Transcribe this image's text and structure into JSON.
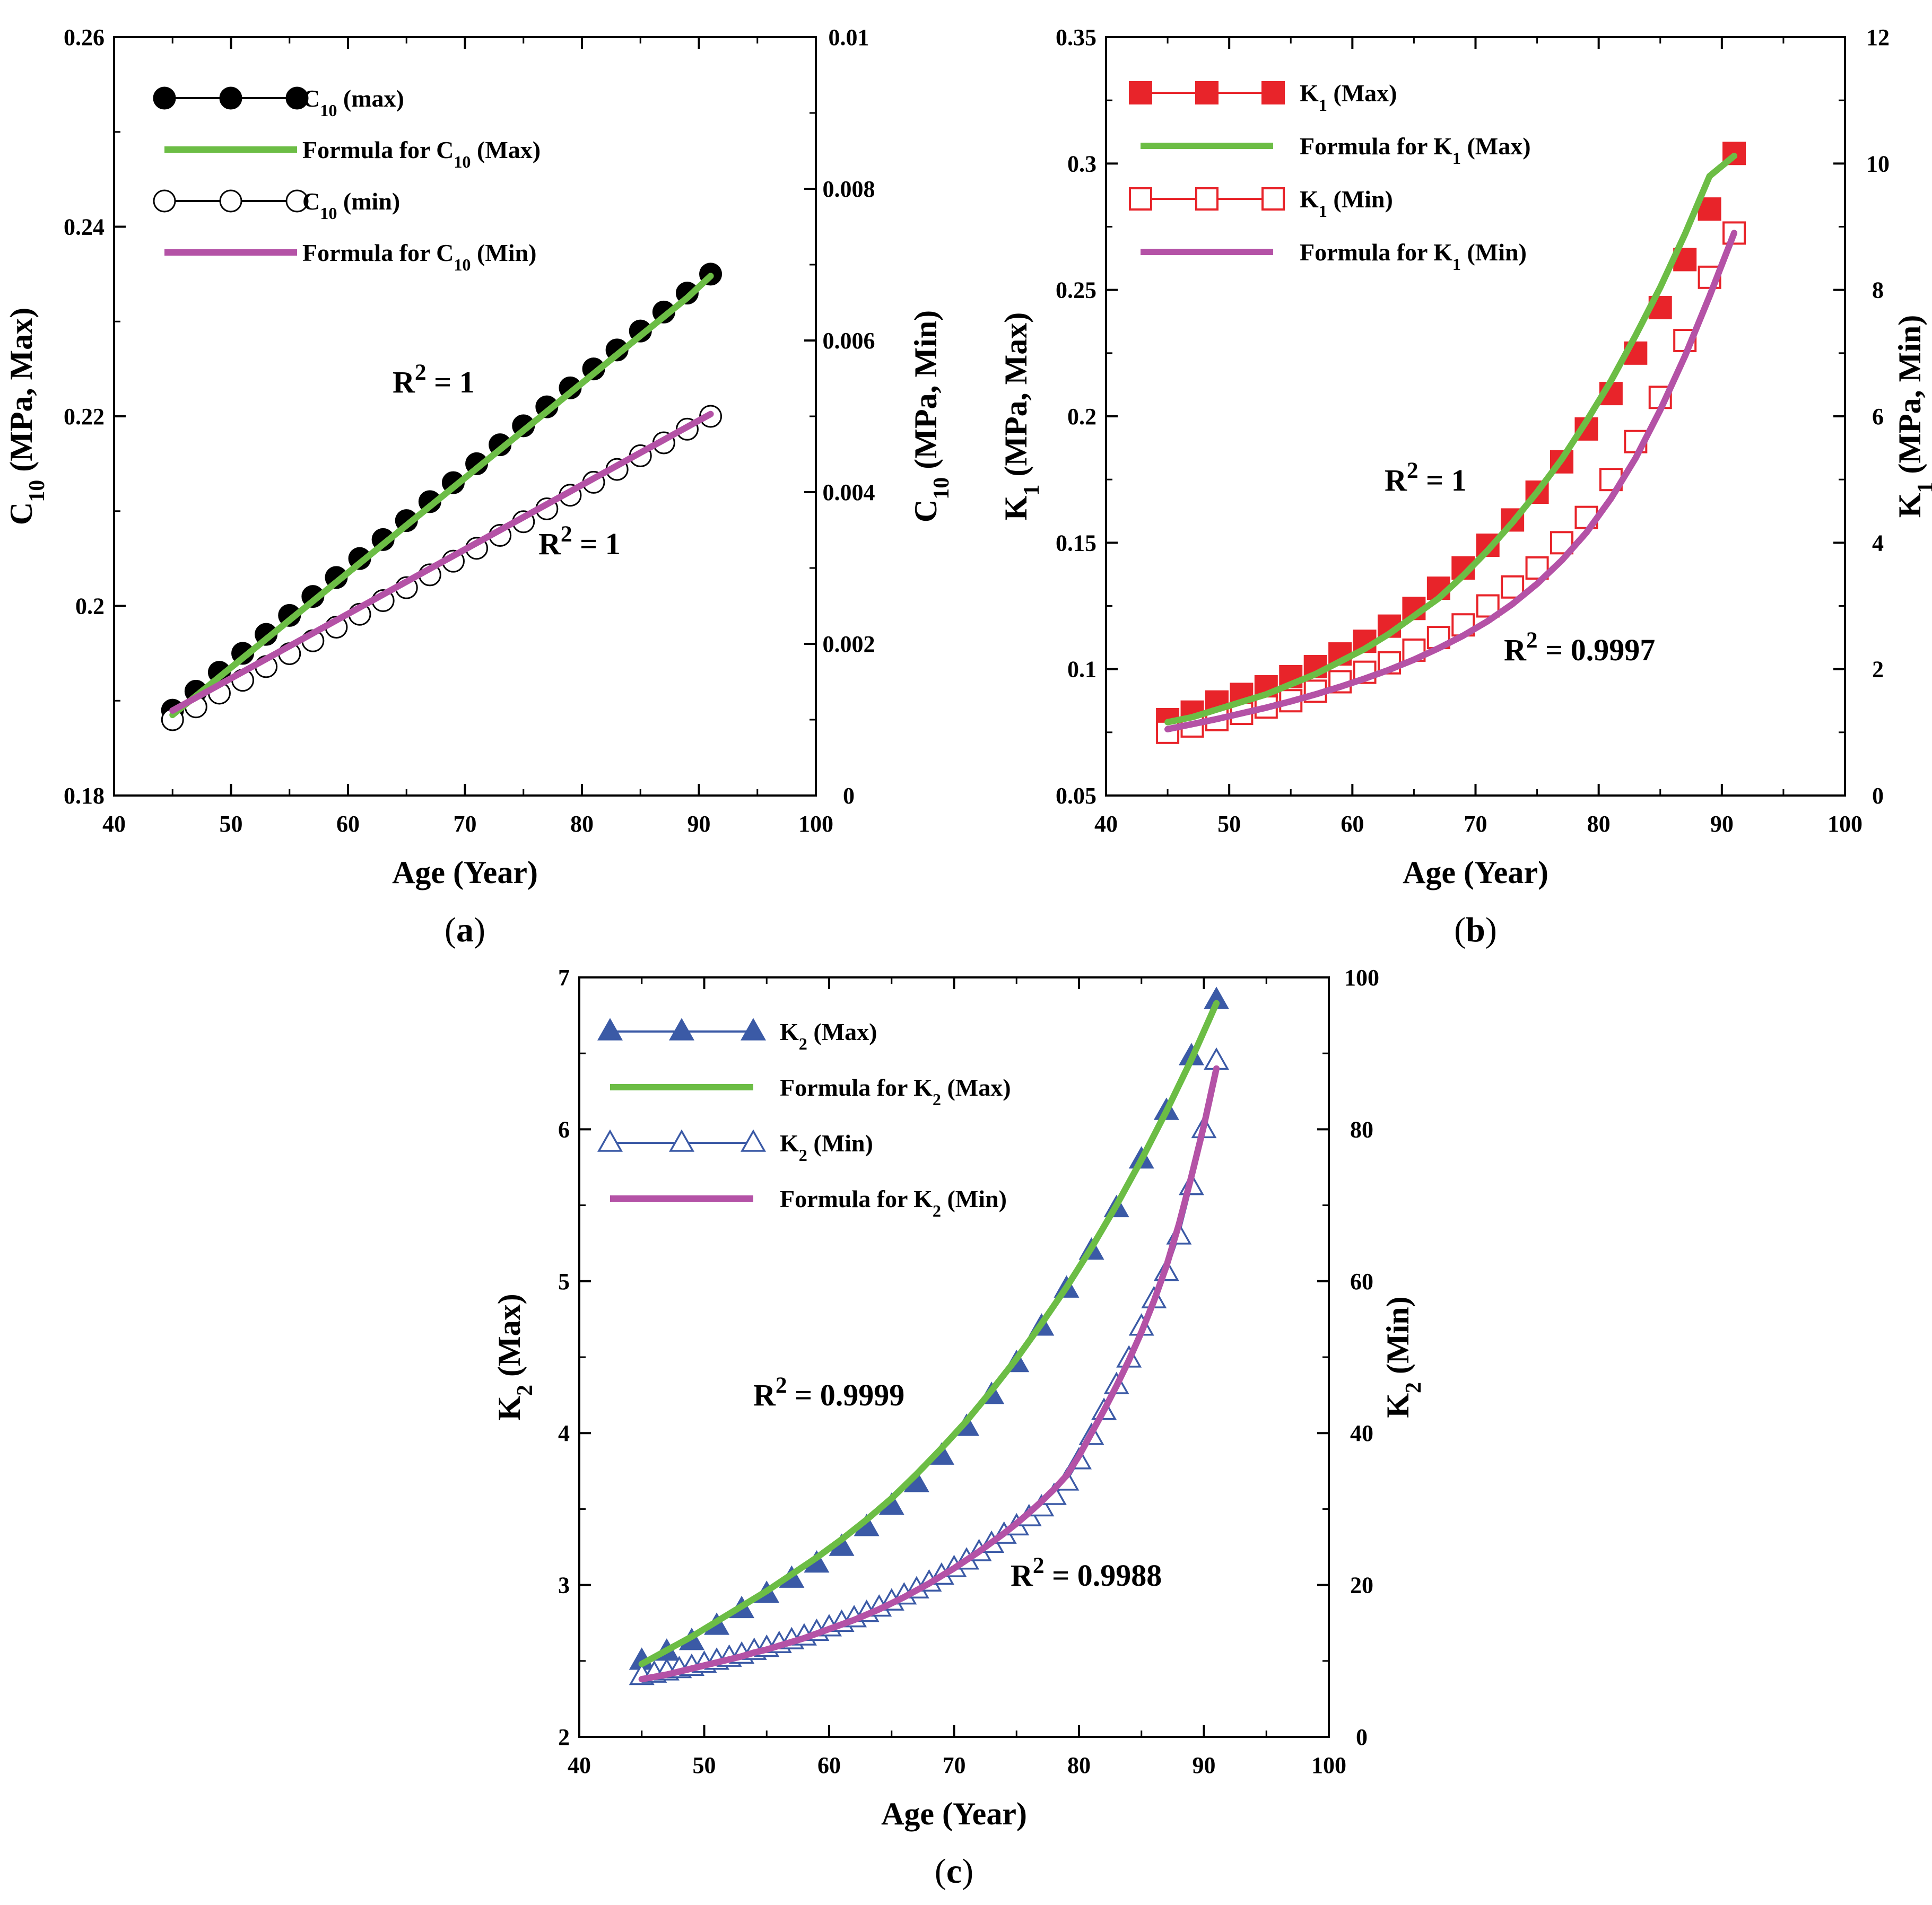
{
  "chart_data": [
    {
      "id": "a",
      "type": "line",
      "panel_label": "(a)",
      "xlabel": "Age (Year)",
      "ylabel_left": "C10 (MPa, Max)",
      "ylabel_right": "C10 (MPa, Min)",
      "xlim": [
        40,
        100
      ],
      "ylim_left": [
        0.18,
        0.26
      ],
      "ylim_right": [
        0,
        0.01
      ],
      "x_ticks": [
        40,
        50,
        60,
        70,
        80,
        90,
        100
      ],
      "x_tick_labels": [
        "40",
        "50",
        "60",
        "70",
        "80",
        "90",
        "100"
      ],
      "y_left_ticks": [
        0.18,
        0.2,
        0.22,
        0.24,
        0.26
      ],
      "y_left_tick_labels": [
        "0.18",
        "0.2",
        "0.22",
        "0.24",
        "0.26"
      ],
      "y_right_ticks": [
        0,
        0.002,
        0.004,
        0.006,
        0.008,
        0.01
      ],
      "y_right_tick_labels": [
        "0",
        "0.002",
        "0.004",
        "0.006",
        "0.008",
        "0.01"
      ],
      "x": [
        45,
        47,
        49,
        51,
        53,
        55,
        57,
        59,
        61,
        63,
        65,
        67,
        69,
        71,
        73,
        75,
        77,
        79,
        81,
        83,
        85,
        87,
        89,
        91
      ],
      "series": [
        {
          "name": "C10 (max)",
          "axis": "left",
          "style": "marker-filled-circle",
          "values": [
            0.189,
            0.191,
            0.193,
            0.195,
            0.197,
            0.199,
            0.201,
            0.203,
            0.205,
            0.207,
            0.209,
            0.211,
            0.213,
            0.215,
            0.217,
            0.219,
            0.221,
            0.223,
            0.225,
            0.227,
            0.229,
            0.231,
            0.233,
            0.235
          ]
        },
        {
          "name": "Formula for C10 (Max)",
          "axis": "left",
          "style": "line-green",
          "values": [
            0.1885,
            0.1905,
            0.1925,
            0.1945,
            0.1965,
            0.1985,
            0.2005,
            0.2025,
            0.2045,
            0.2065,
            0.2085,
            0.2105,
            0.2125,
            0.2145,
            0.2165,
            0.2185,
            0.2205,
            0.2225,
            0.2245,
            0.2265,
            0.2285,
            0.2305,
            0.2325,
            0.2348
          ]
        },
        {
          "name": "C10 (min)",
          "axis": "right",
          "style": "marker-open-circle",
          "values": [
            0.001,
            0.00117,
            0.00135,
            0.00152,
            0.0017,
            0.00187,
            0.00204,
            0.00222,
            0.00239,
            0.00257,
            0.00274,
            0.00291,
            0.00309,
            0.00326,
            0.00343,
            0.00361,
            0.00378,
            0.00396,
            0.00413,
            0.0043,
            0.00448,
            0.00465,
            0.00483,
            0.005
          ]
        },
        {
          "name": "Formula for C10 (Min)",
          "axis": "right",
          "style": "line-magenta",
          "values": [
            0.00112,
            0.00129,
            0.00146,
            0.00163,
            0.0018,
            0.00197,
            0.00214,
            0.00231,
            0.00248,
            0.00265,
            0.00282,
            0.00299,
            0.00316,
            0.00333,
            0.0035,
            0.00367,
            0.00384,
            0.00401,
            0.00418,
            0.00435,
            0.00452,
            0.00469,
            0.00486,
            0.00503
          ]
        }
      ],
      "legend": [
        "C10 (max)",
        "Formula for C10 (Max)",
        "C10 (min)",
        "Formula for C10 (Min)"
      ],
      "legend_position": "top-left",
      "annotations": [
        "R2 = 1",
        "R2 = 1"
      ]
    },
    {
      "id": "b",
      "type": "line",
      "panel_label": "(b)",
      "xlabel": "Age (Year)",
      "ylabel_left": "K1 (MPa, Max)",
      "ylabel_right": "K1 (MPa, Min)",
      "xlim": [
        40,
        100
      ],
      "ylim_left": [
        0.05,
        0.35
      ],
      "ylim_right": [
        0,
        12
      ],
      "x_ticks": [
        40,
        50,
        60,
        70,
        80,
        90,
        100
      ],
      "x_tick_labels": [
        "40",
        "50",
        "60",
        "70",
        "80",
        "90",
        "100"
      ],
      "y_left_ticks": [
        0.05,
        0.1,
        0.15,
        0.2,
        0.25,
        0.3,
        0.35
      ],
      "y_left_tick_labels": [
        "0.05",
        "0.1",
        "0.15",
        "0.2",
        "0.25",
        "0.3",
        "0.35"
      ],
      "y_right_ticks": [
        0,
        2,
        4,
        6,
        8,
        10,
        12
      ],
      "y_right_tick_labels": [
        "0",
        "2",
        "4",
        "6",
        "8",
        "10",
        "12"
      ],
      "x": [
        45,
        47,
        49,
        51,
        53,
        55,
        57,
        59,
        61,
        63,
        65,
        67,
        69,
        71,
        73,
        75,
        77,
        79,
        81,
        83,
        85,
        87,
        89,
        91
      ],
      "series": [
        {
          "name": "K1 (Max)",
          "axis": "left",
          "style": "marker-filled-square",
          "values": [
            0.08,
            0.083,
            0.087,
            0.09,
            0.093,
            0.097,
            0.101,
            0.106,
            0.111,
            0.117,
            0.124,
            0.132,
            0.14,
            0.149,
            0.159,
            0.17,
            0.182,
            0.195,
            0.209,
            0.225,
            0.243,
            0.262,
            0.282,
            0.304
          ]
        },
        {
          "name": "Formula for K1 (Max)",
          "axis": "left",
          "style": "line-green",
          "values": [
            0.079,
            0.081,
            0.084,
            0.087,
            0.09,
            0.094,
            0.098,
            0.103,
            0.108,
            0.114,
            0.121,
            0.128,
            0.137,
            0.147,
            0.158,
            0.17,
            0.183,
            0.198,
            0.214,
            0.232,
            0.251,
            0.272,
            0.295,
            0.303
          ]
        },
        {
          "name": "K1 (Min)",
          "axis": "right",
          "style": "marker-open-square",
          "values": [
            1.0,
            1.1,
            1.2,
            1.3,
            1.4,
            1.5,
            1.65,
            1.8,
            1.95,
            2.1,
            2.3,
            2.5,
            2.7,
            3.0,
            3.3,
            3.6,
            4.0,
            4.4,
            5.0,
            5.6,
            6.3,
            7.2,
            8.2,
            8.9
          ]
        },
        {
          "name": "Formula for K1 (Min)",
          "axis": "right",
          "style": "line-magenta",
          "values": [
            1.05,
            1.13,
            1.21,
            1.3,
            1.39,
            1.49,
            1.6,
            1.72,
            1.85,
            1.99,
            2.15,
            2.33,
            2.53,
            2.76,
            3.03,
            3.35,
            3.72,
            4.16,
            4.7,
            5.34,
            6.1,
            6.95,
            7.9,
            8.9
          ]
        }
      ],
      "legend": [
        "K1 (Max)",
        "Formula for K1 (Max)",
        "K1 (Min)",
        "Formula for K1 (Min)"
      ],
      "legend_position": "top-left",
      "annotations": [
        "R2 = 1",
        "R2 = 0.9997"
      ]
    },
    {
      "id": "c",
      "type": "line",
      "panel_label": "(c)",
      "xlabel": "Age (Year)",
      "ylabel_left": "K2 (Max)",
      "ylabel_right": "K2 (Min)",
      "xlim": [
        40,
        100
      ],
      "ylim_left": [
        2,
        7
      ],
      "ylim_right": [
        0,
        100
      ],
      "x_ticks": [
        40,
        50,
        60,
        70,
        80,
        90,
        100
      ],
      "x_tick_labels": [
        "40",
        "50",
        "60",
        "70",
        "80",
        "90",
        "100"
      ],
      "y_left_ticks": [
        2,
        3,
        4,
        5,
        6,
        7
      ],
      "y_left_tick_labels": [
        "2",
        "3",
        "4",
        "5",
        "6",
        "7"
      ],
      "y_right_ticks": [
        0,
        20,
        40,
        60,
        80,
        100
      ],
      "y_right_tick_labels": [
        "0",
        "20",
        "40",
        "60",
        "80",
        "100"
      ],
      "x_max": [
        45,
        47,
        49,
        51,
        53,
        55,
        57,
        59,
        61,
        63,
        65,
        67,
        69,
        71,
        73,
        75,
        77,
        79,
        81,
        83,
        85,
        87,
        89,
        91
      ],
      "x_min": [
        45,
        46,
        47,
        48,
        49,
        50,
        51,
        52,
        53,
        54,
        55,
        56,
        57,
        58,
        59,
        60,
        61,
        62,
        63,
        64,
        65,
        66,
        67,
        68,
        69,
        70,
        71,
        72,
        73,
        74,
        75,
        76,
        77,
        78,
        79,
        80,
        81,
        82,
        83,
        84,
        85,
        86,
        87,
        88,
        89,
        90,
        91
      ],
      "series": [
        {
          "name": "K2 (Max)",
          "axis": "left",
          "x_key": "x_max",
          "style": "marker-filled-triangle",
          "values": [
            2.5,
            2.56,
            2.63,
            2.73,
            2.84,
            2.94,
            3.04,
            3.14,
            3.25,
            3.38,
            3.52,
            3.67,
            3.85,
            4.04,
            4.25,
            4.46,
            4.7,
            4.95,
            5.2,
            5.48,
            5.8,
            6.12,
            6.48,
            6.85
          ]
        },
        {
          "name": "Formula for K2 (Max)",
          "axis": "left",
          "x_key": "x_max",
          "style": "line-green",
          "values": [
            2.48,
            2.57,
            2.66,
            2.76,
            2.86,
            2.96,
            3.07,
            3.18,
            3.3,
            3.43,
            3.57,
            3.73,
            3.9,
            4.08,
            4.28,
            4.49,
            4.72,
            4.96,
            5.22,
            5.5,
            5.8,
            6.12,
            6.46,
            6.83
          ]
        },
        {
          "name": "K2 (Min)",
          "axis": "right",
          "x_key": "x_min",
          "style": "marker-open-triangle",
          "values": [
            8.0,
            8.3,
            8.6,
            8.9,
            9.2,
            9.6,
            10.0,
            10.4,
            10.8,
            11.3,
            11.7,
            12.2,
            12.7,
            13.2,
            13.8,
            14.4,
            15.0,
            15.6,
            16.3,
            17.0,
            17.8,
            18.6,
            19.4,
            20.3,
            21.2,
            22.2,
            23.2,
            24.3,
            25.4,
            26.6,
            27.7,
            28.9,
            30.2,
            31.7,
            33.6,
            36.4,
            39.6,
            42.9,
            46.3,
            49.8,
            54.0,
            57.6,
            61.2,
            66.0,
            72.5,
            80.0,
            89.0
          ]
        },
        {
          "name": "Formula for K2 (Min)",
          "axis": "right",
          "x_key": "x_min",
          "style": "line-magenta",
          "values": [
            7.6,
            7.9,
            8.2,
            8.6,
            9.0,
            9.4,
            9.8,
            10.2,
            10.6,
            11.1,
            11.5,
            12.0,
            12.5,
            13.0,
            13.6,
            14.2,
            14.8,
            15.4,
            16.1,
            16.8,
            17.6,
            18.4,
            19.3,
            20.2,
            21.2,
            22.2,
            23.3,
            24.4,
            25.6,
            26.8,
            28.1,
            29.5,
            31.0,
            32.6,
            34.4,
            37.0,
            40.0,
            43.0,
            46.2,
            49.6,
            53.3,
            57.4,
            62.0,
            67.5,
            73.8,
            80.5,
            88.0
          ]
        }
      ],
      "legend": [
        "K2 (Max)",
        "Formula for K2 (Max)",
        "K2 (Min)",
        "Formula for K2 (Min)"
      ],
      "legend_position": "top-left",
      "annotations": [
        "R2 = 0.9999",
        "R2 = 0.9988"
      ]
    }
  ],
  "colors": {
    "green": "#6cbd45",
    "magenta": "#b452a6",
    "red": "#e8242a",
    "blue": "#3b5aa6",
    "black": "#000000"
  },
  "panels": {
    "a": {
      "label_open": "(",
      "label_letter": "a",
      "label_close": ")",
      "xlabel": "Age (Year)",
      "ylabel_left_main": "C",
      "ylabel_left_sub": "10",
      "ylabel_left_rest": " (MPa, Max)",
      "ylabel_right_main": "C",
      "ylabel_right_sub": "10",
      "ylabel_right_rest": " (MPa, Min)",
      "legend": [
        {
          "main": "C",
          "sub": "10",
          "rest": " (max)"
        },
        {
          "main": "Formula for C",
          "sub": "10",
          "rest": " (Max)"
        },
        {
          "main": "C",
          "sub": "10",
          "rest": " (min)"
        },
        {
          "main": "Formula for C",
          "sub": "10",
          "rest": " (Min)"
        }
      ],
      "annotations": [
        {
          "pre": "R",
          "sup": "2",
          "post": " = 1"
        },
        {
          "pre": "R",
          "sup": "2",
          "post": " = 1"
        }
      ]
    },
    "b": {
      "label_open": "(",
      "label_letter": "b",
      "label_close": ")",
      "xlabel": "Age (Year)",
      "ylabel_left_main": "K",
      "ylabel_left_sub": "1",
      "ylabel_left_rest": " (MPa, Max)",
      "ylabel_right_main": "K",
      "ylabel_right_sub": "1",
      "ylabel_right_rest": " (MPa, Min)",
      "legend": [
        {
          "main": "K",
          "sub": "1",
          "rest": " (Max)"
        },
        {
          "main": "Formula for K",
          "sub": "1",
          "rest": " (Max)"
        },
        {
          "main": "K",
          "sub": "1",
          "rest": " (Min)"
        },
        {
          "main": "Formula for K",
          "sub": "1",
          "rest": " (Min)"
        }
      ],
      "annotations": [
        {
          "pre": "R",
          "sup": "2",
          "post": " = 1"
        },
        {
          "pre": "R",
          "sup": "2",
          "post": " = 0.9997"
        }
      ]
    },
    "c": {
      "label_open": "(",
      "label_letter": "c",
      "label_close": ")",
      "xlabel": "Age (Year)",
      "ylabel_left_main": "K",
      "ylabel_left_sub": "2",
      "ylabel_left_rest": " (Max)",
      "ylabel_right_main": "K",
      "ylabel_right_sub": "2",
      "ylabel_right_rest": " (Min)",
      "legend": [
        {
          "main": "K",
          "sub": "2",
          "rest": " (Max)"
        },
        {
          "main": "Formula for K",
          "sub": "2",
          "rest": " (Max)"
        },
        {
          "main": "K",
          "sub": "2",
          "rest": " (Min)"
        },
        {
          "main": "Formula for K",
          "sub": "2",
          "rest": " (Min)"
        }
      ],
      "annotations": [
        {
          "pre": "R",
          "sup": "2",
          "post": " = 0.9999"
        },
        {
          "pre": "R",
          "sup": "2",
          "post": " = 0.9988"
        }
      ]
    }
  }
}
